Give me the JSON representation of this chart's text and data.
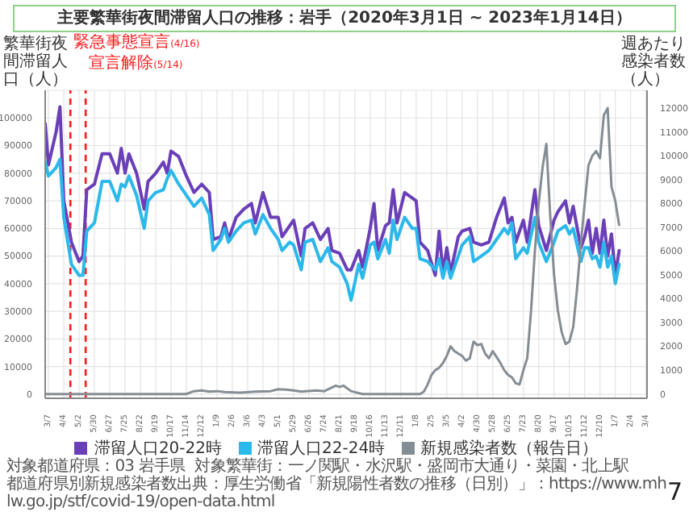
{
  "chart_data": {
    "type": "line",
    "title": "主要繁華街夜間滞留人口の推移：岩手（2020年3月1日 ~ 2023年1月14日）",
    "ylabel": "繁華街夜間滞留人口（人）",
    "y2label": "週あたり感染者数（人）",
    "x": [
      "2020-03-01",
      "2020-03-07",
      "2020-03-21",
      "2020-03-28",
      "2020-04-04",
      "2020-04-18",
      "2020-05-02",
      "2020-05-09",
      "2020-05-16",
      "2020-05-30",
      "2020-06-13",
      "2020-06-27",
      "2020-07-11",
      "2020-07-18",
      "2020-07-25",
      "2020-08-01",
      "2020-08-15",
      "2020-08-29",
      "2020-09-05",
      "2020-09-19",
      "2020-10-03",
      "2020-10-10",
      "2020-10-17",
      "2020-10-31",
      "2020-11-14",
      "2020-11-28",
      "2020-12-12",
      "2020-12-26",
      "2021-01-02",
      "2021-01-16",
      "2021-01-23",
      "2021-01-30",
      "2021-02-13",
      "2021-02-27",
      "2021-03-13",
      "2021-03-20",
      "2021-04-03",
      "2021-04-17",
      "2021-05-01",
      "2021-05-08",
      "2021-05-22",
      "2021-05-29",
      "2021-06-12",
      "2021-06-19",
      "2021-07-03",
      "2021-07-17",
      "2021-07-31",
      "2021-08-07",
      "2021-08-21",
      "2021-09-04",
      "2021-09-11",
      "2021-09-25",
      "2021-10-02",
      "2021-10-16",
      "2021-10-23",
      "2021-10-30",
      "2021-11-13",
      "2021-11-20",
      "2021-11-27",
      "2021-12-04",
      "2021-12-18",
      "2022-01-01",
      "2022-01-08",
      "2022-01-15",
      "2022-01-29",
      "2022-02-12",
      "2022-02-19",
      "2022-02-26",
      "2022-03-05",
      "2022-03-12",
      "2022-03-26",
      "2022-04-02",
      "2022-04-16",
      "2022-04-23",
      "2022-05-07",
      "2022-05-21",
      "2022-06-04",
      "2022-06-18",
      "2022-06-25",
      "2022-07-02",
      "2022-07-09",
      "2022-07-23",
      "2022-07-30",
      "2022-08-13",
      "2022-08-20",
      "2022-09-03",
      "2022-09-17",
      "2022-09-24",
      "2022-10-08",
      "2022-10-15",
      "2022-10-22",
      "2022-11-05",
      "2022-11-12",
      "2022-11-19",
      "2022-11-26",
      "2022-12-03",
      "2022-12-10",
      "2022-12-17",
      "2022-12-24",
      "2022-12-31",
      "2023-01-07",
      "2023-01-14"
    ],
    "series": [
      {
        "name": "滞留人口20-22時",
        "color": "#6a3fb8",
        "values": [
          98000,
          83000,
          95000,
          104000,
          70000,
          55000,
          48000,
          50000,
          74000,
          76000,
          87000,
          87000,
          80000,
          89000,
          80000,
          87000,
          80000,
          67000,
          77000,
          80000,
          84000,
          80000,
          88000,
          86000,
          79000,
          73000,
          76000,
          73000,
          56000,
          57000,
          62000,
          56000,
          64000,
          67000,
          69000,
          62000,
          73000,
          64000,
          64000,
          57000,
          61000,
          63000,
          50000,
          60000,
          62000,
          56000,
          60000,
          52000,
          51000,
          45000,
          45000,
          52000,
          46000,
          60000,
          69000,
          52000,
          61000,
          62000,
          74000,
          62000,
          73000,
          71000,
          70000,
          55000,
          52000,
          43000,
          59000,
          44000,
          53000,
          44000,
          57000,
          59000,
          60000,
          55000,
          54000,
          55000,
          64000,
          71000,
          62000,
          64000,
          55000,
          63000,
          55000,
          74000,
          61000,
          52000,
          63000,
          66000,
          70000,
          62000,
          68000,
          53000,
          57000,
          63000,
          51000,
          60000,
          51000,
          63000,
          50000,
          58000,
          43000,
          52000
        ]
      },
      {
        "name": "滞留人口22-24時",
        "color": "#2bb8ea",
        "values": [
          84000,
          79000,
          82000,
          85000,
          64000,
          47000,
          43000,
          43000,
          59000,
          62000,
          77000,
          77000,
          70000,
          76000,
          75000,
          79000,
          72000,
          60000,
          70000,
          73000,
          74000,
          78000,
          81000,
          76000,
          72000,
          68000,
          71000,
          65000,
          52000,
          56000,
          60000,
          55000,
          59000,
          62000,
          63000,
          58000,
          65000,
          60000,
          56000,
          52000,
          55000,
          54000,
          45000,
          55000,
          56000,
          48000,
          53000,
          48000,
          46000,
          40000,
          34000,
          47000,
          42000,
          54000,
          55000,
          49000,
          56000,
          51000,
          63000,
          56000,
          64000,
          60000,
          60000,
          49000,
          48000,
          45000,
          49000,
          42000,
          48000,
          42000,
          50000,
          54000,
          57000,
          48000,
          50000,
          52000,
          56000,
          60000,
          58000,
          62000,
          49000,
          53000,
          51000,
          64000,
          55000,
          48000,
          55000,
          59000,
          61000,
          58000,
          60000,
          48000,
          53000,
          53000,
          49000,
          50000,
          46000,
          55000,
          46000,
          50000,
          40000,
          47000
        ]
      },
      {
        "name": "新規感染者数（報告日）",
        "color": "#858d94",
        "axis": "y2",
        "x": [
          "2020-03-01",
          "2020-06-13",
          "2020-10-03",
          "2020-11-14",
          "2020-11-28",
          "2020-12-12",
          "2020-12-26",
          "2021-01-09",
          "2021-01-23",
          "2021-02-20",
          "2021-03-20",
          "2021-04-17",
          "2021-05-01",
          "2021-05-15",
          "2021-05-29",
          "2021-06-12",
          "2021-07-10",
          "2021-07-24",
          "2021-08-14",
          "2021-08-21",
          "2021-08-28",
          "2021-09-11",
          "2021-10-02",
          "2021-11-27",
          "2022-01-15",
          "2022-01-22",
          "2022-01-29",
          "2022-02-05",
          "2022-02-12",
          "2022-02-19",
          "2022-02-26",
          "2022-03-05",
          "2022-03-12",
          "2022-03-19",
          "2022-03-26",
          "2022-04-02",
          "2022-04-09",
          "2022-04-16",
          "2022-04-23",
          "2022-04-30",
          "2022-05-07",
          "2022-05-14",
          "2022-05-21",
          "2022-05-28",
          "2022-06-04",
          "2022-06-11",
          "2022-06-18",
          "2022-06-25",
          "2022-07-02",
          "2022-07-09",
          "2022-07-16",
          "2022-07-23",
          "2022-07-30",
          "2022-08-06",
          "2022-08-13",
          "2022-08-20",
          "2022-08-27",
          "2022-09-03",
          "2022-09-10",
          "2022-09-17",
          "2022-09-24",
          "2022-10-01",
          "2022-10-08",
          "2022-10-15",
          "2022-10-22",
          "2022-10-29",
          "2022-11-05",
          "2022-11-12",
          "2022-11-19",
          "2022-11-26",
          "2022-12-03",
          "2022-12-10",
          "2022-12-17",
          "2022-12-24",
          "2022-12-31",
          "2023-01-07",
          "2023-01-14"
        ],
        "values": [
          0,
          0,
          0,
          0,
          120,
          150,
          100,
          120,
          80,
          60,
          100,
          120,
          200,
          180,
          150,
          100,
          150,
          120,
          350,
          300,
          350,
          120,
          0,
          0,
          0,
          100,
          400,
          800,
          1000,
          1100,
          1300,
          1600,
          2000,
          1800,
          1700,
          1600,
          1400,
          1500,
          2200,
          2050,
          2100,
          1700,
          1500,
          1800,
          1550,
          1300,
          1000,
          800,
          700,
          450,
          400,
          1000,
          1500,
          3500,
          6000,
          8000,
          9500,
          10500,
          7500,
          5000,
          3500,
          2600,
          2100,
          2200,
          2800,
          4400,
          6300,
          8000,
          9600,
          10000,
          10200,
          9900,
          11700,
          12000,
          8700,
          8100,
          7100
        ]
      }
    ],
    "xlim": [
      "2020-03-01",
      "2023-03-06"
    ],
    "xticks": [
      {
        "value": "2020-03-07",
        "label": "3/7"
      },
      {
        "value": "2020-04-04",
        "label": "4/4"
      },
      {
        "value": "2020-05-02",
        "label": "5/2"
      },
      {
        "value": "2020-05-30",
        "label": "5/30"
      },
      {
        "value": "2020-06-27",
        "label": "6/27"
      },
      {
        "value": "2020-07-25",
        "label": "7/25"
      },
      {
        "value": "2020-08-22",
        "label": "8/22"
      },
      {
        "value": "2020-09-19",
        "label": "9/19"
      },
      {
        "value": "2020-10-17",
        "label": "10/17"
      },
      {
        "value": "2020-11-14",
        "label": "11/14"
      },
      {
        "value": "2020-12-12",
        "label": "12/12"
      },
      {
        "value": "2021-01-09",
        "label": "1/9"
      },
      {
        "value": "2021-02-06",
        "label": "2/6"
      },
      {
        "value": "2021-03-06",
        "label": "3/6"
      },
      {
        "value": "2021-04-03",
        "label": "4/3"
      },
      {
        "value": "2021-05-01",
        "label": "5/1"
      },
      {
        "value": "2021-05-29",
        "label": "5/29"
      },
      {
        "value": "2021-06-26",
        "label": "6/26"
      },
      {
        "value": "2021-07-24",
        "label": "7/24"
      },
      {
        "value": "2021-08-21",
        "label": "8/21"
      },
      {
        "value": "2021-09-18",
        "label": "9/18"
      },
      {
        "value": "2021-10-16",
        "label": "10/16"
      },
      {
        "value": "2021-11-13",
        "label": "11/13"
      },
      {
        "value": "2021-12-11",
        "label": "12/11"
      },
      {
        "value": "2022-01-08",
        "label": "1/8"
      },
      {
        "value": "2022-02-05",
        "label": "2/5"
      },
      {
        "value": "2022-03-05",
        "label": "3/5"
      },
      {
        "value": "2022-04-02",
        "label": "4/2"
      },
      {
        "value": "2022-04-30",
        "label": "4/30"
      },
      {
        "value": "2022-05-28",
        "label": "5/28"
      },
      {
        "value": "2022-06-25",
        "label": "6/25"
      },
      {
        "value": "2022-07-23",
        "label": "7/23"
      },
      {
        "value": "2022-08-20",
        "label": "8/20"
      },
      {
        "value": "2022-09-17",
        "label": "9/17"
      },
      {
        "value": "2022-10-15",
        "label": "10/15"
      },
      {
        "value": "2022-11-12",
        "label": "11/12"
      },
      {
        "value": "2022-12-10",
        "label": "12/10"
      },
      {
        "value": "2023-01-07",
        "label": "1/7"
      },
      {
        "value": "2023-02-04",
        "label": "2/4"
      },
      {
        "value": "2023-03-04",
        "label": "3/4"
      }
    ],
    "ylim": [
      -1500,
      110000
    ],
    "yticks": [
      0,
      10000,
      20000,
      30000,
      40000,
      50000,
      60000,
      70000,
      80000,
      90000,
      100000
    ],
    "y2lim": [
      -180,
      12750
    ],
    "y2ticks": [
      0,
      1000,
      2000,
      3000,
      4000,
      5000,
      6000,
      7000,
      8000,
      9000,
      10000,
      11000,
      12000
    ],
    "ref_lines": [
      {
        "axis": "x",
        "value": "2020-04-16",
        "label": "緊急事態宣言(4/16)",
        "color": "#ff1a1a",
        "line_style": "dashed"
      },
      {
        "axis": "x",
        "value": "2020-05-14",
        "label": "宣言解除(5/14)",
        "color": "#ff1a1a",
        "line_style": "dashed"
      }
    ],
    "grid": true,
    "legend": "bottom",
    "annotations": [
      "対象都道府県：03 岩手県",
      "対象繁華街：一ノ関駅・水沢駅・盛岡市大通り・菜園・北上駅",
      "都道府県別新規感染者数出典：厚生労働省「新規陽性者数の推移（日別）」：https://www.mhlw.go.jp/stf/covid-19/open-data.html",
      "7"
    ]
  }
}
